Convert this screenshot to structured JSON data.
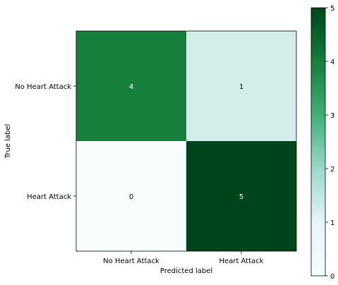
{
  "chart_data": {
    "type": "heatmap",
    "title": "",
    "xlabel": "Predicted label",
    "ylabel": "True label",
    "x_categories": [
      "No Heart Attack",
      "Heart Attack"
    ],
    "y_categories": [
      "No Heart Attack",
      "Heart Attack"
    ],
    "values": [
      [
        4,
        1
      ],
      [
        0,
        5
      ]
    ],
    "colormap": "Greens",
    "colorbar": {
      "min": 0,
      "max": 5,
      "ticks": [
        "0",
        "1",
        "2",
        "3",
        "4",
        "5"
      ]
    },
    "cell_colors": [
      [
        "#157f3b",
        "#d3eeea"
      ],
      [
        "#f7fcfd",
        "#00441b"
      ]
    ],
    "cell_text_colors": [
      [
        "#ffffff",
        "#000000"
      ],
      [
        "#000000",
        "#ffffff"
      ]
    ]
  }
}
